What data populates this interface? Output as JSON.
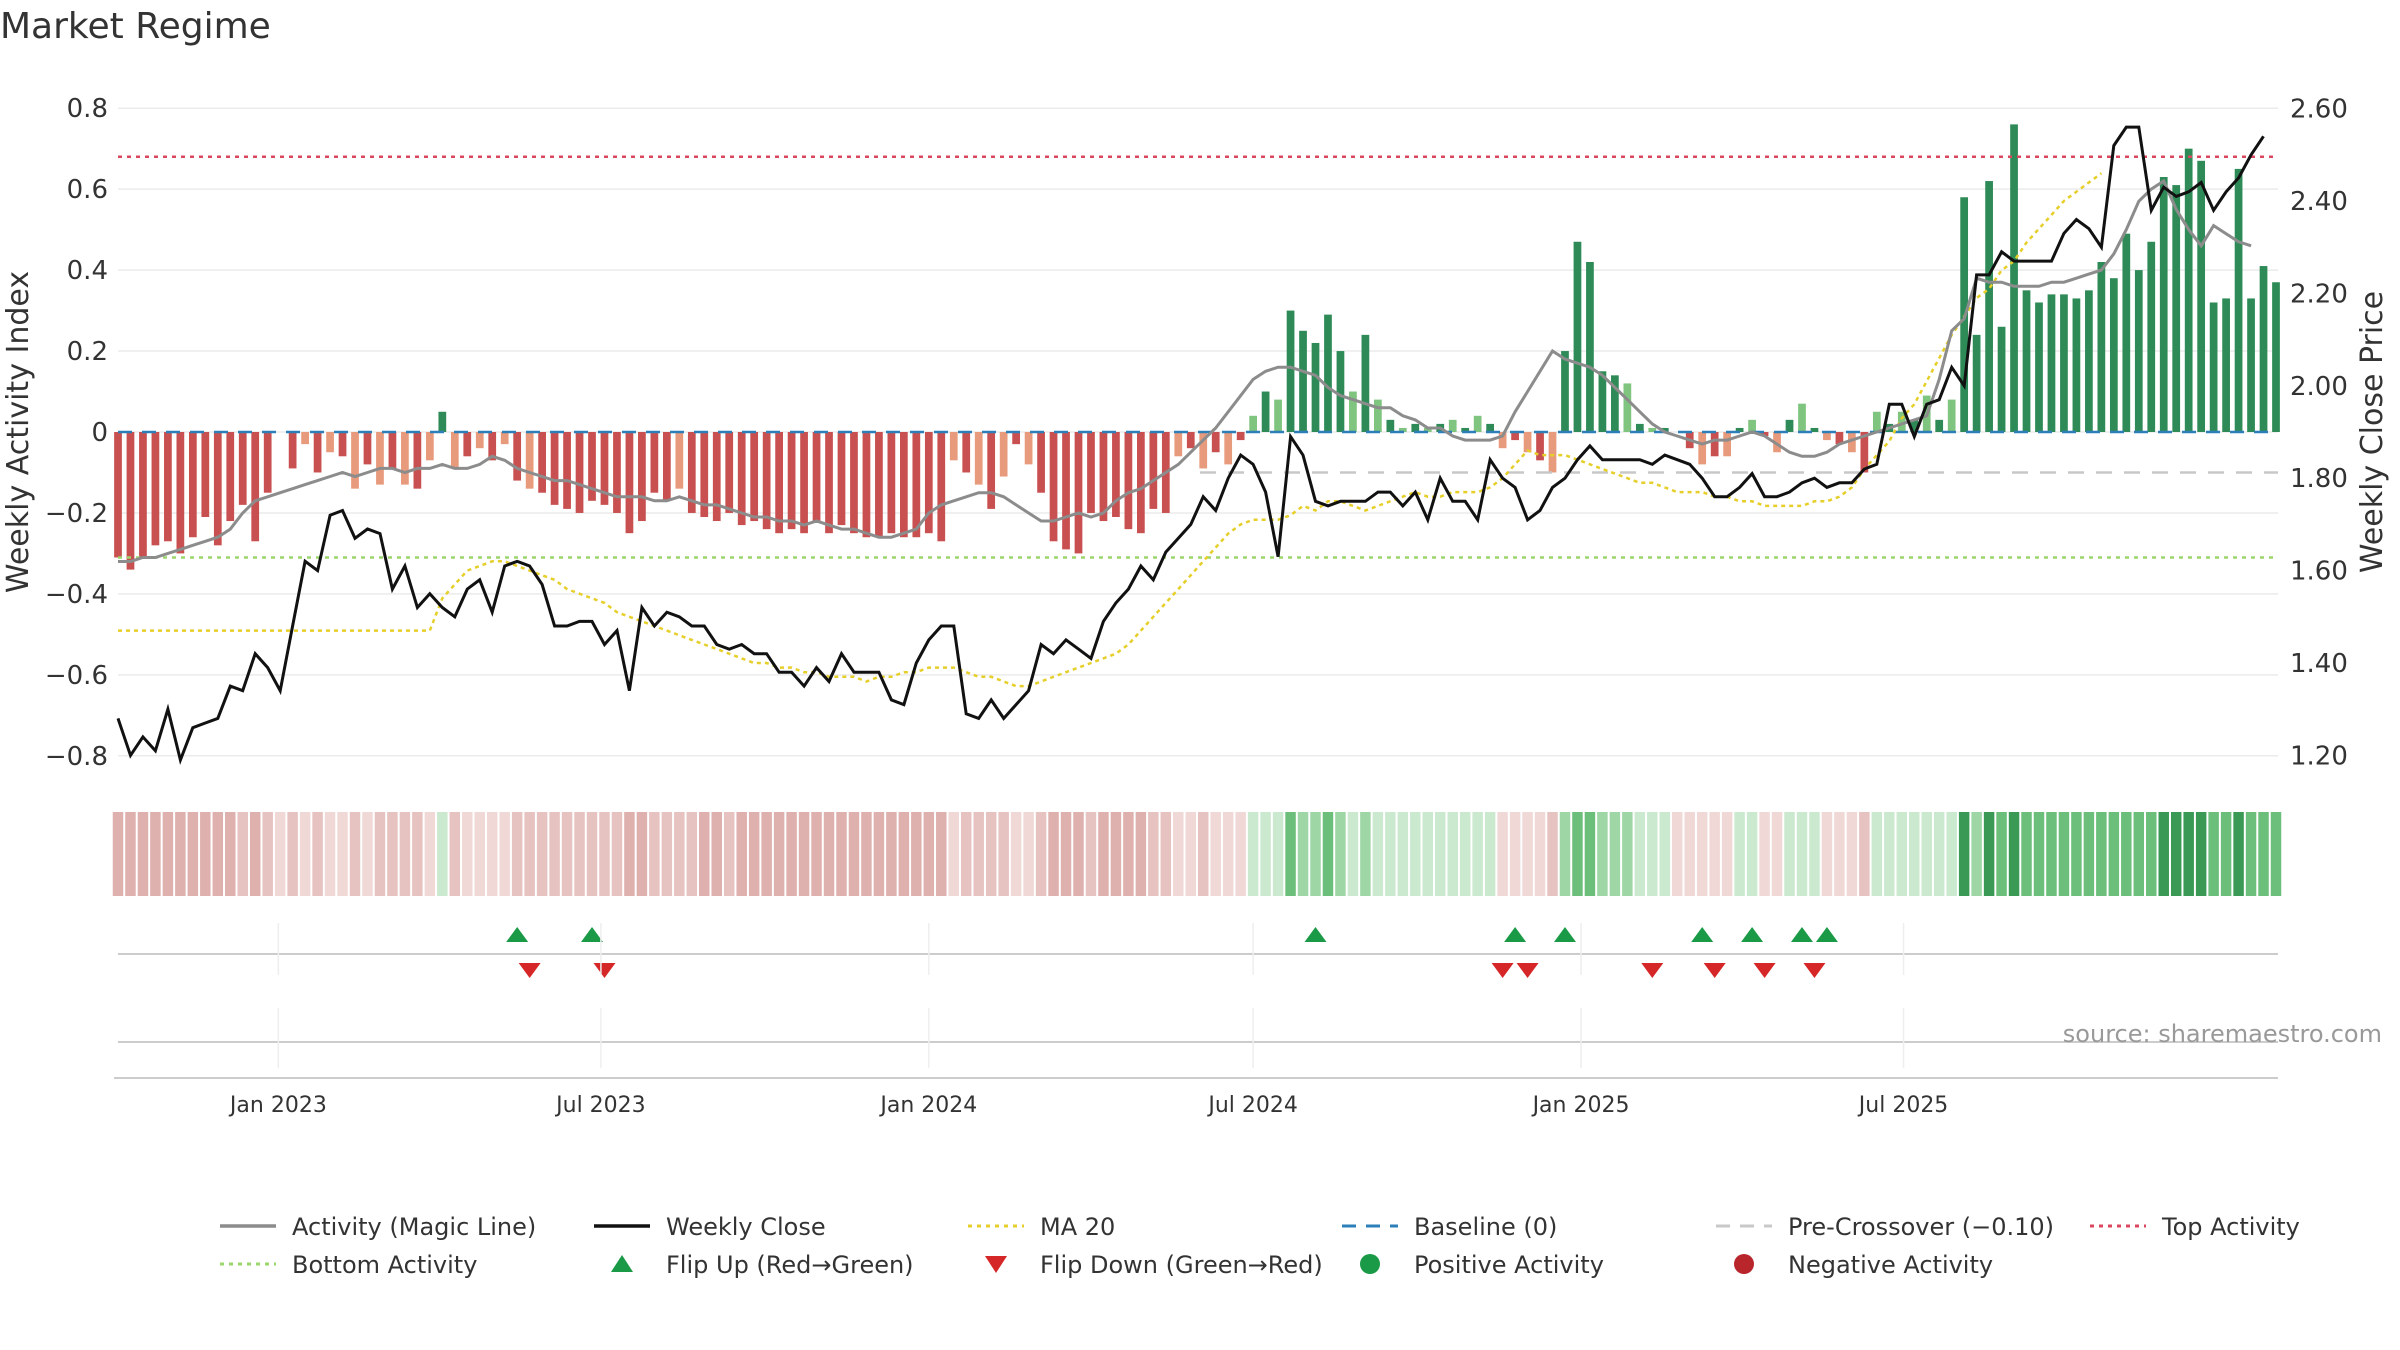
{
  "chart_data": {
    "type": "bar",
    "title": "Market Regime",
    "ylabel": "Weekly Activity Index",
    "y2label": "Weekly Close Price",
    "ylim": [
      -0.84,
      0.84
    ],
    "y2lim": [
      1.164,
      2.636
    ],
    "yticks": [
      "0.8",
      "0.6",
      "0.4",
      "0.2",
      "0",
      "−0.2",
      "−0.4",
      "−0.6",
      "−0.8"
    ],
    "y2ticks": [
      "2.60",
      "2.40",
      "2.20",
      "2.00",
      "1.80",
      "1.60",
      "1.40",
      "1.20"
    ],
    "xticks": [
      "Jan 2023",
      "Jul 2023",
      "Jan 2024",
      "Jul 2024",
      "Jan 2025",
      "Jul 2025"
    ],
    "source": "source: sharemaestro.com",
    "reference_lines": {
      "top_activity": 0.68,
      "bottom_activity": -0.31,
      "baseline": 0,
      "pre_crossover": -0.1
    },
    "weeks_start": "2022-10-03",
    "activity": [
      -0.31,
      -0.34,
      -0.31,
      -0.28,
      -0.27,
      -0.3,
      -0.26,
      -0.21,
      -0.28,
      -0.22,
      -0.18,
      -0.27,
      -0.15,
      0,
      -0.09,
      -0.03,
      -0.1,
      -0.05,
      -0.06,
      -0.14,
      -0.08,
      -0.13,
      -0.09,
      -0.13,
      -0.14,
      -0.07,
      0.05,
      -0.09,
      -0.06,
      -0.04,
      -0.07,
      -0.03,
      -0.12,
      -0.14,
      -0.15,
      -0.18,
      -0.19,
      -0.2,
      -0.17,
      -0.18,
      -0.2,
      -0.25,
      -0.22,
      -0.15,
      -0.17,
      -0.14,
      -0.2,
      -0.21,
      -0.22,
      -0.2,
      -0.23,
      -0.22,
      -0.24,
      -0.25,
      -0.24,
      -0.25,
      -0.22,
      -0.25,
      -0.23,
      -0.25,
      -0.26,
      -0.26,
      -0.25,
      -0.26,
      -0.26,
      -0.25,
      -0.27,
      -0.07,
      -0.1,
      -0.13,
      -0.19,
      -0.11,
      -0.03,
      -0.08,
      -0.15,
      -0.27,
      -0.29,
      -0.3,
      -0.2,
      -0.22,
      -0.21,
      -0.24,
      -0.25,
      -0.19,
      -0.2,
      -0.06,
      -0.04,
      -0.09,
      -0.05,
      -0.08,
      -0.02,
      0.04,
      0.1,
      0.08,
      0.3,
      0.25,
      0.22,
      0.29,
      0.2,
      0.1,
      0.24,
      0.08,
      0.03,
      0.01,
      0.02,
      0.01,
      0.02,
      0.03,
      0.01,
      0.04,
      0.02,
      -0.04,
      -0.02,
      -0.05,
      -0.07,
      -0.1,
      0.2,
      0.47,
      0.42,
      0.15,
      0.14,
      0.12,
      0.02,
      0.01,
      0.01,
      0,
      -0.04,
      -0.08,
      -0.06,
      -0.06,
      0.01,
      0.03,
      -0.01,
      -0.05,
      0.03,
      0.07,
      0.01,
      -0.02,
      -0.03,
      -0.05,
      -0.1,
      0.05,
      0.02,
      0.05,
      0.03,
      0.09,
      0.03,
      0.08,
      0.58,
      0.24,
      0.62,
      0.26,
      0.76,
      0.35,
      0.32,
      0.34,
      0.34,
      0.33,
      0.35,
      0.42,
      0.38,
      0.49,
      0.4,
      0.47,
      0.63,
      0.61,
      0.7,
      0.67,
      0.32,
      0.33,
      0.65,
      0.33,
      0.41,
      0.37
    ],
    "magic_line": [
      -0.32,
      -0.32,
      -0.31,
      -0.31,
      -0.3,
      -0.29,
      -0.28,
      -0.27,
      -0.26,
      -0.24,
      -0.2,
      -0.17,
      -0.16,
      -0.15,
      -0.14,
      -0.13,
      -0.12,
      -0.11,
      -0.1,
      -0.11,
      -0.1,
      -0.09,
      -0.09,
      -0.1,
      -0.09,
      -0.09,
      -0.08,
      -0.09,
      -0.09,
      -0.08,
      -0.06,
      -0.07,
      -0.09,
      -0.1,
      -0.11,
      -0.12,
      -0.12,
      -0.13,
      -0.14,
      -0.15,
      -0.16,
      -0.16,
      -0.16,
      -0.17,
      -0.17,
      -0.16,
      -0.17,
      -0.18,
      -0.18,
      -0.19,
      -0.2,
      -0.21,
      -0.21,
      -0.22,
      -0.22,
      -0.23,
      -0.22,
      -0.23,
      -0.24,
      -0.24,
      -0.25,
      -0.26,
      -0.26,
      -0.25,
      -0.24,
      -0.2,
      -0.18,
      -0.17,
      -0.16,
      -0.15,
      -0.15,
      -0.16,
      -0.18,
      -0.2,
      -0.22,
      -0.22,
      -0.21,
      -0.2,
      -0.21,
      -0.2,
      -0.17,
      -0.15,
      -0.14,
      -0.12,
      -0.1,
      -0.08,
      -0.05,
      -0.02,
      0.01,
      0.05,
      0.09,
      0.13,
      0.15,
      0.16,
      0.16,
      0.15,
      0.14,
      0.11,
      0.09,
      0.08,
      0.07,
      0.06,
      0.06,
      0.04,
      0.03,
      0.01,
      0.01,
      -0.01,
      -0.02,
      -0.02,
      -0.02,
      -0.01,
      0.05,
      0.1,
      0.15,
      0.2,
      0.18,
      0.17,
      0.16,
      0.14,
      0.11,
      0.08,
      0.05,
      0.02,
      0,
      -0.01,
      -0.02,
      -0.03,
      -0.02,
      -0.02,
      -0.01,
      0,
      -0.01,
      -0.03,
      -0.05,
      -0.06,
      -0.06,
      -0.05,
      -0.03,
      -0.02,
      -0.01,
      0,
      0.01,
      0.02,
      0.03,
      0.04,
      0.13,
      0.25,
      0.28,
      0.38,
      0.37,
      0.37,
      0.36,
      0.36,
      0.36,
      0.37,
      0.37,
      0.38,
      0.39,
      0.4,
      0.44,
      0.5,
      0.57,
      0.6,
      0.62,
      0.55,
      0.5,
      0.46,
      0.51,
      0.49,
      0.47,
      0.46
    ],
    "weekly_close": [
      1.28,
      1.2,
      1.24,
      1.21,
      1.3,
      1.19,
      1.26,
      1.27,
      1.28,
      1.35,
      1.34,
      1.42,
      1.39,
      1.34,
      1.48,
      1.62,
      1.6,
      1.72,
      1.73,
      1.67,
      1.69,
      1.68,
      1.56,
      1.61,
      1.52,
      1.55,
      1.52,
      1.5,
      1.56,
      1.58,
      1.51,
      1.61,
      1.62,
      1.61,
      1.57,
      1.48,
      1.48,
      1.49,
      1.49,
      1.44,
      1.47,
      1.34,
      1.52,
      1.48,
      1.51,
      1.5,
      1.48,
      1.48,
      1.44,
      1.43,
      1.44,
      1.42,
      1.42,
      1.38,
      1.38,
      1.35,
      1.39,
      1.36,
      1.42,
      1.38,
      1.38,
      1.38,
      1.32,
      1.31,
      1.4,
      1.45,
      1.48,
      1.48,
      1.29,
      1.28,
      1.32,
      1.28,
      1.31,
      1.34,
      1.44,
      1.42,
      1.45,
      1.43,
      1.41,
      1.49,
      1.53,
      1.56,
      1.61,
      1.58,
      1.64,
      1.67,
      1.7,
      1.76,
      1.73,
      1.8,
      1.85,
      1.83,
      1.77,
      1.63,
      1.89,
      1.85,
      1.75,
      1.74,
      1.75,
      1.75,
      1.75,
      1.77,
      1.77,
      1.74,
      1.77,
      1.71,
      1.8,
      1.75,
      1.75,
      1.71,
      1.84,
      1.8,
      1.78,
      1.71,
      1.73,
      1.78,
      1.8,
      1.84,
      1.87,
      1.84,
      1.84,
      1.84,
      1.84,
      1.83,
      1.85,
      1.84,
      1.83,
      1.8,
      1.76,
      1.76,
      1.78,
      1.81,
      1.76,
      1.76,
      1.77,
      1.79,
      1.8,
      1.78,
      1.79,
      1.79,
      1.82,
      1.83,
      1.96,
      1.96,
      1.89,
      1.96,
      1.97,
      2.04,
      2.0,
      2.24,
      2.24,
      2.29,
      2.27,
      2.27,
      2.27,
      2.27,
      2.33,
      2.36,
      2.34,
      2.3,
      2.52,
      2.56,
      2.56,
      2.38,
      2.43,
      2.41,
      2.42,
      2.44,
      2.38,
      2.42,
      2.45,
      2.5,
      2.54
    ],
    "ma20": [
      1.47,
      1.47,
      1.47,
      1.47,
      1.47,
      1.47,
      1.47,
      1.47,
      1.47,
      1.47,
      1.47,
      1.47,
      1.47,
      1.47,
      1.47,
      1.47,
      1.47,
      1.47,
      1.47,
      1.47,
      1.47,
      1.47,
      1.47,
      1.47,
      1.47,
      1.47,
      1.54,
      1.57,
      1.6,
      1.61,
      1.62,
      1.62,
      1.61,
      1.6,
      1.59,
      1.58,
      1.56,
      1.55,
      1.54,
      1.53,
      1.51,
      1.5,
      1.49,
      1.48,
      1.47,
      1.46,
      1.45,
      1.44,
      1.43,
      1.42,
      1.41,
      1.4,
      1.4,
      1.39,
      1.39,
      1.38,
      1.38,
      1.37,
      1.37,
      1.37,
      1.36,
      1.37,
      1.37,
      1.38,
      1.38,
      1.39,
      1.39,
      1.39,
      1.38,
      1.37,
      1.37,
      1.36,
      1.35,
      1.35,
      1.36,
      1.37,
      1.38,
      1.39,
      1.4,
      1.41,
      1.42,
      1.44,
      1.47,
      1.5,
      1.53,
      1.56,
      1.59,
      1.62,
      1.65,
      1.68,
      1.7,
      1.71,
      1.71,
      1.71,
      1.72,
      1.74,
      1.73,
      1.75,
      1.75,
      1.74,
      1.73,
      1.74,
      1.75,
      1.76,
      1.77,
      1.76,
      1.76,
      1.77,
      1.77,
      1.77,
      1.78,
      1.8,
      1.83,
      1.86,
      1.85,
      1.85,
      1.85,
      1.84,
      1.83,
      1.82,
      1.81,
      1.8,
      1.79,
      1.79,
      1.78,
      1.77,
      1.77,
      1.77,
      1.76,
      1.76,
      1.75,
      1.75,
      1.74,
      1.74,
      1.74,
      1.74,
      1.75,
      1.75,
      1.76,
      1.78,
      1.82,
      1.85,
      1.88,
      1.93,
      1.96,
      2.01,
      2.06,
      2.11,
      2.15,
      2.19,
      2.21,
      2.25,
      2.27,
      2.31,
      2.34,
      2.37,
      2.4,
      2.42,
      2.44,
      2.46
    ],
    "flip_up_weeks": [
      32,
      38,
      96,
      112,
      116,
      127,
      131,
      135,
      137
    ],
    "flip_down_weeks": [
      33,
      39,
      111,
      113,
      123,
      128,
      132,
      136
    ]
  },
  "legend": [
    {
      "label": "Activity (Magic Line)",
      "style": "line",
      "color": "#8c8c8c"
    },
    {
      "label": "Weekly Close",
      "style": "line",
      "color": "#111111"
    },
    {
      "label": "MA 20",
      "style": "dotted",
      "color": "#e6cf2a"
    },
    {
      "label": "Baseline (0)",
      "style": "dashed",
      "color": "#2c7fb8"
    },
    {
      "label": "Pre-Crossover (−0.10)",
      "style": "dashed",
      "color": "#c8c8c8"
    },
    {
      "label": "Top Activity",
      "style": "dotted",
      "color": "#d9485f"
    },
    {
      "label": "Bottom Activity",
      "style": "dotted",
      "color": "#9bd66b"
    },
    {
      "label": "Flip Up (Red→Green)",
      "style": "triangle-up",
      "color": "#1a9a46"
    },
    {
      "label": "Flip Down (Green→Red)",
      "style": "triangle-down",
      "color": "#d62728"
    },
    {
      "label": "Positive Activity",
      "style": "dot",
      "color": "#1a9a46"
    },
    {
      "label": "Negative Activity",
      "style": "dot",
      "color": "#b8262c"
    }
  ],
  "colors": {
    "pos_strong": "#2e8b57",
    "pos_light": "#7fc47f",
    "neg_strong": "#c95050",
    "neg_light": "#e89a7c"
  }
}
